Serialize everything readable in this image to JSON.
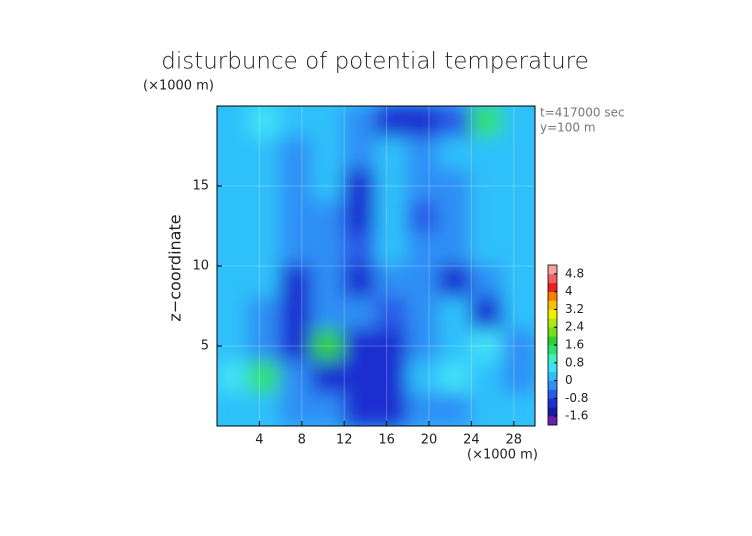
{
  "chart_data": {
    "type": "contour",
    "title": "disturbunce of potential temperature",
    "ylabel": "z−coordinate",
    "xunit": "(×1000 m)",
    "yunit": "(×1000 m)",
    "annotations": [
      "t=417000 sec",
      "y=100 m"
    ],
    "xlim": [
      0,
      30
    ],
    "ylim": [
      0,
      20
    ],
    "xticks": [
      4,
      8,
      12,
      16,
      20,
      24,
      28
    ],
    "yticks": [
      5,
      10,
      15
    ],
    "grid": true,
    "field": {
      "values": [
        [
          0.2,
          0.8,
          0.2,
          0,
          -0.4,
          -0.8,
          -1.0,
          -0.6,
          1.2,
          0.4
        ],
        [
          0,
          0,
          -0.4,
          0,
          -0.4,
          0.4,
          -0.4,
          0,
          0,
          0
        ],
        [
          0.2,
          0.4,
          -0.4,
          0,
          -0.8,
          0.4,
          -0.4,
          -0.4,
          0,
          0.2
        ],
        [
          0.2,
          0.4,
          -0.4,
          -0.4,
          -0.8,
          0.2,
          -0.6,
          -0.4,
          0.2,
          0.4
        ],
        [
          0.2,
          0.2,
          -0.4,
          -0.4,
          -0.6,
          0,
          -0.4,
          -0.4,
          0.2,
          0.4
        ],
        [
          0.4,
          0.2,
          -0.8,
          -0.4,
          -0.8,
          -0.4,
          -0.4,
          -0.8,
          -0.4,
          0.2
        ],
        [
          0,
          -0.4,
          -0.8,
          -0.4,
          -0.4,
          -0.6,
          -0.4,
          0,
          -0.8,
          0.4
        ],
        [
          0.4,
          -0.4,
          -1.2,
          1.6,
          -0.8,
          -0.8,
          -0.4,
          0.4,
          0.8,
          -0.4
        ],
        [
          0.8,
          1.2,
          -0.4,
          -0.8,
          -1.2,
          -0.8,
          0.4,
          0.8,
          0.4,
          -0.4
        ],
        [
          0.4,
          0.4,
          -0.4,
          -0.4,
          -1.2,
          -0.8,
          -0.4,
          -0.4,
          0.2,
          0
        ]
      ]
    },
    "colorbar": {
      "clim": [
        -2,
        5.2
      ],
      "ticks": [
        4.8,
        4,
        3.2,
        2.4,
        1.6,
        0.8,
        0,
        -0.8,
        -1.6
      ],
      "colors": [
        "#6a1fb0",
        "#1a1aa8",
        "#1f2fd0",
        "#2a5ae8",
        "#2f8ff5",
        "#2fc0fa",
        "#40e0f8",
        "#40f0c0",
        "#30e070",
        "#30d030",
        "#70e020",
        "#b0e810",
        "#f0f000",
        "#f8c000",
        "#f88000",
        "#f02020",
        "#f06060",
        "#f8a0a0"
      ]
    }
  }
}
